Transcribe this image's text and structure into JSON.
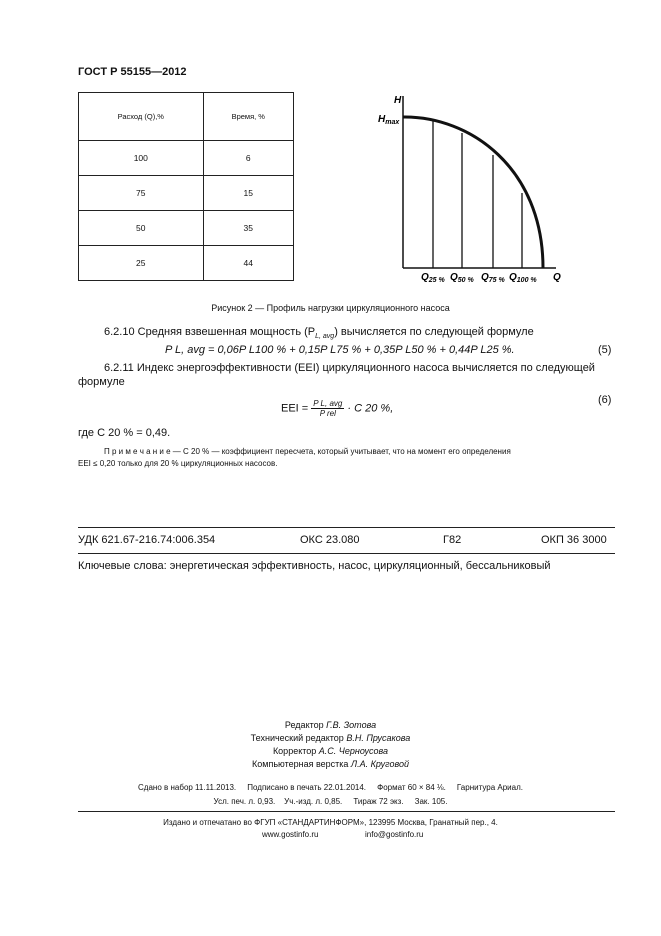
{
  "header": {
    "code": "ГОСТ Р 55155—2012"
  },
  "table": {
    "headers": [
      "Расход (Q),%",
      "Время, %"
    ],
    "rows": [
      [
        "100",
        "6"
      ],
      [
        "75",
        "15"
      ],
      [
        "50",
        "35"
      ],
      [
        "25",
        "44"
      ]
    ]
  },
  "figure": {
    "y_label": "H",
    "h_max": "H",
    "h_max_sub": "max",
    "x_label": "Q",
    "ticks": [
      {
        "q": "Q",
        "sub": "25 %"
      },
      {
        "q": "Q",
        "sub": "50 %"
      },
      {
        "q": "Q",
        "sub": "75 %"
      },
      {
        "q": "Q",
        "sub": "100 %"
      }
    ],
    "caption": "Рисунок 2 — Профиль нагрузки циркуляционного насоса"
  },
  "body": {
    "p1": "6.2.10  Средняя взвешенная мощность (P",
    "p1_sub": "L, avg",
    "p1_end": ") вычисляется по следующей формуле",
    "f5": "P L, avg = 0,06P L100 % + 0,15P L75 % + 0,35P L50 % + 0,44P L25 %.",
    "f5_num": "(5)",
    "p2_a": "6.2.11  Индекс энергоэффективности (EEI) циркуляционного насоса вычисляется по следующей",
    "p2_b": "формуле",
    "f6_left": "EEI =",
    "f6_num": "P L, avg",
    "f6_den": "P rel",
    "f6_right": "· C 20 %,",
    "f6_no": "(6)",
    "where": "где C 20 % = 0,49.",
    "note_a": "П р и м е ч а н и е — C 20 % — коэффициент пересчета, который учитывает, что на момент его определения",
    "note_b": "EEI ≤ 0,20 только для 20 % циркуляционных насосов."
  },
  "classification": {
    "udk": "УДК  621.67-216.74:006.354",
    "oks": "ОКС  23.080",
    "g": "Г82",
    "okp": "ОКП  36  3000"
  },
  "keywords": "Ключевые слова:  энергетическая эффективность, насос, циркуляционный, бессальниковый",
  "credits": [
    {
      "role": "Редактор",
      "name": "Г.В. Зотова"
    },
    {
      "role": "Технический редактор",
      "name": "В.Н. Прусакова"
    },
    {
      "role": "Корректор",
      "name": "А.С. Черноусова"
    },
    {
      "role": "Компьютерная верстка",
      "name": "Л.А. Круговой"
    }
  ],
  "print": {
    "line1": "Сдано в набор 11.11.2013.     Подписано в печать 22.01.2014.     Формат 60 × 84 ⅛.     Гарнитура Ариал.",
    "line2": "Усл. печ. л. 0,93.    Уч.-изд. л. 0,85.     Тираж 72 экз.     Зак. 105."
  },
  "publisher": {
    "line": "Издано и отпечатано во ФГУП «СТАНДАРТИНФОРМ», 123995 Москва, Гранатный пер., 4.",
    "web": "www.gostinfo.ru",
    "email": "info@gostinfo.ru"
  }
}
